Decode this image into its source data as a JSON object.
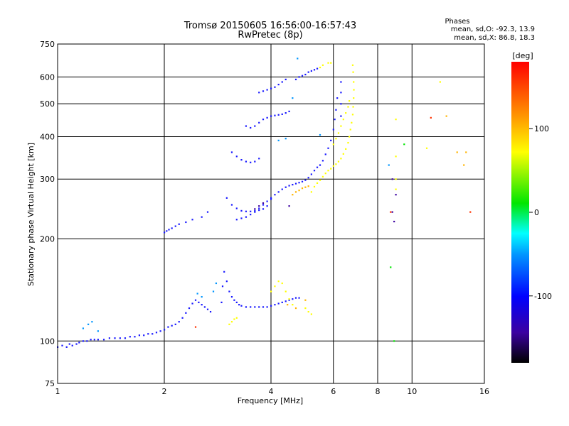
{
  "chart_data": {
    "type": "scatter",
    "title": "Tromsø 20150605 16:56:00-16:57:43",
    "subtitle": "RwPretec (8p)",
    "xlabel": "Frequency [MHz]",
    "ylabel": "Stationary phase Virtual Height [km]",
    "x_scale": "log",
    "y_scale": "log",
    "xlim": [
      1,
      16
    ],
    "ylim": [
      75,
      750
    ],
    "x_ticks": [
      1,
      2,
      4,
      6,
      8,
      10,
      16
    ],
    "x_tick_labels": [
      "1",
      "2",
      "4",
      "6",
      "8",
      "10",
      "16"
    ],
    "y_ticks": [
      75,
      100,
      200,
      300,
      400,
      500,
      600,
      750
    ],
    "y_tick_labels": [
      "75",
      "100",
      "200",
      "300",
      "400",
      "500",
      "600",
      "750"
    ],
    "grid": true,
    "phase_stats": {
      "heading": "Phases",
      "line_o": "mean, sd,O: -92.3, 13.9",
      "line_x": "mean, sd,X:  86.8, 18.3"
    },
    "colorbar": {
      "label": "[deg]",
      "range": [
        -180,
        180
      ],
      "ticks": [
        100,
        0,
        -100
      ],
      "tick_labels": [
        "100",
        "0",
        "-100"
      ]
    },
    "series": [
      {
        "phase": -100,
        "color": "#1a1aff",
        "points": [
          [
            1.0,
            96
          ],
          [
            1.03,
            97
          ],
          [
            1.06,
            96
          ],
          [
            1.08,
            98
          ],
          [
            1.1,
            97
          ],
          [
            1.13,
            98
          ],
          [
            1.15,
            99
          ],
          [
            1.18,
            100
          ],
          [
            1.21,
            100
          ],
          [
            1.24,
            101
          ],
          [
            1.27,
            101
          ],
          [
            1.3,
            101
          ],
          [
            1.35,
            101
          ],
          [
            1.4,
            102
          ],
          [
            1.45,
            102
          ],
          [
            1.5,
            102
          ],
          [
            1.55,
            102
          ],
          [
            1.6,
            103
          ],
          [
            1.65,
            103
          ],
          [
            1.7,
            104
          ],
          [
            1.75,
            104
          ],
          [
            1.8,
            105
          ],
          [
            1.85,
            105
          ],
          [
            1.9,
            106
          ],
          [
            1.95,
            107
          ],
          [
            2.0,
            108
          ],
          [
            2.05,
            110
          ],
          [
            2.1,
            111
          ],
          [
            2.15,
            112
          ],
          [
            2.2,
            114
          ],
          [
            2.25,
            117
          ],
          [
            2.3,
            121
          ],
          [
            2.35,
            125
          ],
          [
            2.4,
            129
          ],
          [
            2.45,
            132
          ],
          [
            2.5,
            130
          ],
          [
            2.55,
            128
          ],
          [
            2.6,
            126
          ],
          [
            2.65,
            124
          ],
          [
            2.7,
            122
          ],
          [
            2.0,
            209
          ],
          [
            2.03,
            211
          ],
          [
            2.06,
            213
          ],
          [
            2.1,
            215
          ],
          [
            2.15,
            218
          ],
          [
            2.2,
            221
          ],
          [
            2.3,
            224
          ],
          [
            2.4,
            228
          ],
          [
            2.55,
            232
          ],
          [
            2.65,
            240
          ],
          [
            2.9,
            130
          ],
          [
            2.92,
            145
          ],
          [
            2.95,
            160
          ],
          [
            3.0,
            150
          ],
          [
            3.05,
            140
          ],
          [
            3.1,
            135
          ],
          [
            3.15,
            132
          ],
          [
            3.2,
            130
          ],
          [
            3.25,
            128
          ],
          [
            3.3,
            127
          ],
          [
            3.4,
            126
          ],
          [
            3.5,
            126
          ],
          [
            3.6,
            126
          ],
          [
            3.7,
            126
          ],
          [
            3.8,
            126
          ],
          [
            3.9,
            126
          ],
          [
            4.0,
            127
          ],
          [
            4.1,
            128
          ],
          [
            4.2,
            129
          ],
          [
            4.3,
            130
          ],
          [
            4.4,
            131
          ],
          [
            4.5,
            132
          ],
          [
            4.6,
            133
          ],
          [
            4.7,
            134
          ],
          [
            4.8,
            134
          ],
          [
            3.0,
            264
          ],
          [
            3.1,
            252
          ],
          [
            3.2,
            246
          ],
          [
            3.3,
            242
          ],
          [
            3.4,
            241
          ],
          [
            3.5,
            241
          ],
          [
            3.6,
            242
          ],
          [
            3.7,
            243
          ],
          [
            3.8,
            245
          ],
          [
            3.9,
            250
          ],
          [
            4.0,
            262
          ],
          [
            4.1,
            270
          ],
          [
            4.2,
            275
          ],
          [
            4.3,
            280
          ],
          [
            4.4,
            284
          ],
          [
            4.5,
            287
          ],
          [
            4.6,
            289
          ],
          [
            4.7,
            291
          ],
          [
            4.8,
            293
          ],
          [
            4.9,
            295
          ],
          [
            5.0,
            298
          ],
          [
            5.1,
            303
          ],
          [
            5.2,
            310
          ],
          [
            5.3,
            318
          ],
          [
            5.4,
            325
          ],
          [
            5.5,
            330
          ],
          [
            5.6,
            340
          ],
          [
            5.7,
            355
          ],
          [
            5.8,
            370
          ],
          [
            5.9,
            390
          ],
          [
            6.0,
            420
          ],
          [
            6.05,
            450
          ],
          [
            6.1,
            480
          ],
          [
            6.15,
            520
          ],
          [
            3.2,
            228
          ],
          [
            3.3,
            230
          ],
          [
            3.4,
            232
          ],
          [
            3.5,
            236
          ],
          [
            3.6,
            240
          ],
          [
            3.7,
            246
          ],
          [
            3.8,
            252
          ],
          [
            3.9,
            258
          ],
          [
            4.0,
            264
          ],
          [
            3.1,
            360
          ],
          [
            3.2,
            350
          ],
          [
            3.3,
            342
          ],
          [
            3.4,
            338
          ],
          [
            3.5,
            336
          ],
          [
            3.6,
            338
          ],
          [
            3.7,
            345
          ],
          [
            3.4,
            430
          ],
          [
            3.5,
            425
          ],
          [
            3.6,
            430
          ],
          [
            3.7,
            440
          ],
          [
            3.8,
            450
          ],
          [
            3.9,
            455
          ],
          [
            4.0,
            460
          ],
          [
            4.1,
            462
          ],
          [
            4.2,
            464
          ],
          [
            4.3,
            466
          ],
          [
            4.4,
            470
          ],
          [
            4.5,
            475
          ],
          [
            3.7,
            540
          ],
          [
            3.8,
            545
          ],
          [
            3.9,
            550
          ],
          [
            4.0,
            555
          ],
          [
            4.1,
            560
          ],
          [
            4.2,
            570
          ],
          [
            4.3,
            580
          ],
          [
            4.4,
            590
          ],
          [
            4.7,
            590
          ],
          [
            4.8,
            600
          ],
          [
            4.9,
            605
          ],
          [
            5.0,
            610
          ],
          [
            5.1,
            620
          ],
          [
            5.2,
            625
          ],
          [
            5.3,
            630
          ],
          [
            5.4,
            635
          ],
          [
            6.3,
            460
          ],
          [
            6.3,
            500
          ],
          [
            6.3,
            540
          ],
          [
            6.3,
            580
          ]
        ]
      },
      {
        "phase": -80,
        "color": "#0096ff",
        "points": [
          [
            1.18,
            109
          ],
          [
            1.22,
            112
          ],
          [
            1.25,
            114
          ],
          [
            1.3,
            107
          ],
          [
            2.48,
            138
          ],
          [
            2.55,
            135
          ],
          [
            2.75,
            140
          ],
          [
            2.8,
            148
          ],
          [
            4.2,
            390
          ],
          [
            4.4,
            395
          ],
          [
            4.6,
            520
          ],
          [
            4.75,
            680
          ],
          [
            5.5,
            405
          ],
          [
            8.6,
            330
          ]
        ]
      },
      {
        "phase": 100,
        "color": "#ffff00",
        "points": [
          [
            5.2,
            275
          ],
          [
            5.3,
            285
          ],
          [
            5.4,
            292
          ],
          [
            5.5,
            298
          ],
          [
            5.6,
            305
          ],
          [
            5.7,
            312
          ],
          [
            5.8,
            318
          ],
          [
            5.9,
            322
          ],
          [
            6.0,
            328
          ],
          [
            6.1,
            332
          ],
          [
            6.2,
            338
          ],
          [
            6.3,
            345
          ],
          [
            6.4,
            356
          ],
          [
            6.5,
            368
          ],
          [
            6.6,
            384
          ],
          [
            6.65,
            400
          ],
          [
            6.7,
            420
          ],
          [
            6.75,
            440
          ],
          [
            6.8,
            465
          ],
          [
            6.82,
            490
          ],
          [
            6.84,
            520
          ],
          [
            6.85,
            550
          ],
          [
            6.84,
            580
          ],
          [
            6.82,
            620
          ],
          [
            6.8,
            650
          ],
          [
            6.0,
            380
          ],
          [
            6.1,
            395
          ],
          [
            6.2,
            410
          ],
          [
            6.3,
            430
          ],
          [
            6.4,
            450
          ],
          [
            6.5,
            470
          ],
          [
            6.6,
            490
          ],
          [
            6.65,
            510
          ],
          [
            3.05,
            112
          ],
          [
            3.1,
            114
          ],
          [
            3.15,
            116
          ],
          [
            3.2,
            117
          ],
          [
            4.0,
            140
          ],
          [
            4.1,
            145
          ],
          [
            4.2,
            150
          ],
          [
            4.3,
            148
          ],
          [
            4.4,
            140
          ],
          [
            4.5,
            133
          ],
          [
            4.6,
            128
          ],
          [
            5.0,
            125
          ],
          [
            5.1,
            122
          ],
          [
            5.2,
            120
          ],
          [
            5.5,
            640
          ],
          [
            5.6,
            650
          ],
          [
            5.8,
            660
          ],
          [
            5.9,
            660
          ],
          [
            9.0,
            280
          ],
          [
            9.0,
            300
          ],
          [
            9.0,
            350
          ],
          [
            9.0,
            450
          ],
          [
            11.0,
            370
          ],
          [
            12.0,
            580
          ]
        ]
      },
      {
        "phase": 140,
        "color": "#ffb400",
        "points": [
          [
            4.6,
            270
          ],
          [
            4.7,
            275
          ],
          [
            4.8,
            278
          ],
          [
            4.9,
            282
          ],
          [
            5.0,
            284
          ],
          [
            5.1,
            286
          ],
          [
            4.45,
            128
          ],
          [
            4.7,
            125
          ],
          [
            5.0,
            132
          ],
          [
            12.5,
            460
          ],
          [
            13.4,
            360
          ],
          [
            14.0,
            330
          ],
          [
            14.2,
            360
          ]
        ]
      },
      {
        "phase": -140,
        "color": "#3c00a0",
        "points": [
          [
            3.6,
            245
          ],
          [
            3.7,
            250
          ],
          [
            3.8,
            255
          ],
          [
            4.5,
            250
          ],
          [
            8.8,
            300
          ],
          [
            8.8,
            240
          ],
          [
            8.9,
            225
          ],
          [
            9.0,
            270
          ]
        ]
      },
      {
        "phase": 20,
        "color": "#00e600",
        "points": [
          [
            9.5,
            380
          ],
          [
            8.7,
            165
          ],
          [
            8.9,
            100
          ]
        ]
      },
      {
        "phase": 160,
        "color": "#ff3200",
        "points": [
          [
            2.45,
            110
          ],
          [
            8.7,
            240
          ],
          [
            11.3,
            455
          ],
          [
            14.6,
            240
          ]
        ]
      }
    ]
  }
}
